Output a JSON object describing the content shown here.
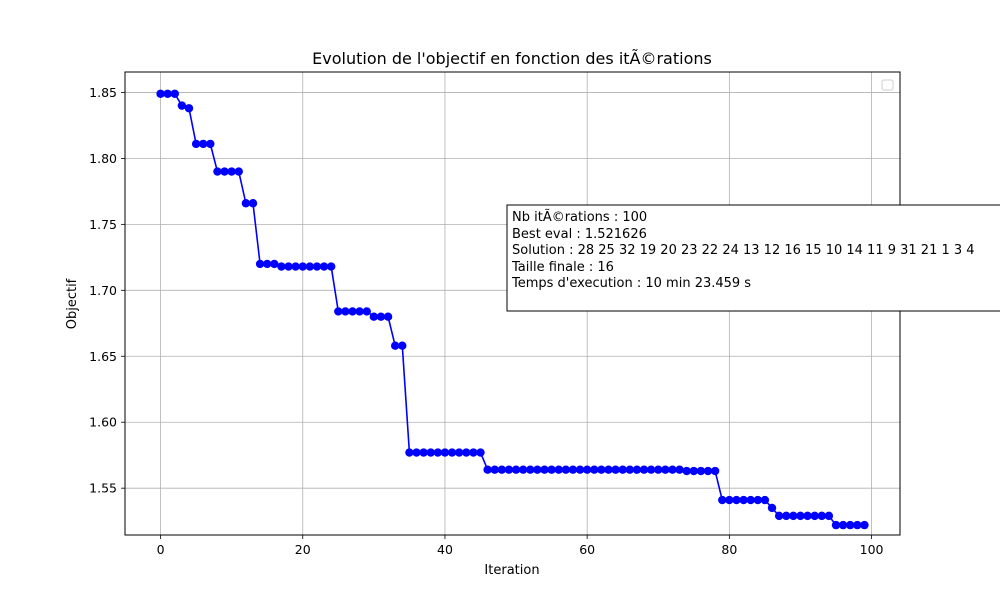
{
  "chart_data": {
    "type": "line",
    "title": "Evolution de l'objectif en fonction des itÃ©rations",
    "xlabel": "Iteration",
    "ylabel": "Objectif",
    "xlim": [
      -5,
      104
    ],
    "ylim": [
      1.5145,
      1.8655
    ],
    "xticks": [
      0,
      20,
      40,
      60,
      80,
      100
    ],
    "yticks": [
      1.55,
      1.6,
      1.65,
      1.7,
      1.75,
      1.8,
      1.85
    ],
    "ytick_labels": [
      "1.55",
      "1.60",
      "1.65",
      "1.70",
      "1.75",
      "1.80",
      "1.85"
    ],
    "grid": true,
    "legend": "top-right (empty)",
    "colors": {
      "line": "#0000ff",
      "marker": "#0000ff",
      "grid": "#b0b0b0",
      "frame": "#000000"
    },
    "series": [
      {
        "x": [
          0,
          1,
          2,
          3,
          4,
          5,
          6,
          7,
          8,
          9,
          10,
          11,
          12,
          13,
          14,
          15,
          16,
          17,
          18,
          19,
          20,
          21,
          22,
          23,
          24,
          25,
          26,
          27,
          28,
          29,
          30,
          31,
          32,
          33,
          34,
          35,
          36,
          37,
          38,
          39,
          40,
          41,
          42,
          43,
          44,
          45,
          46,
          47,
          48,
          49,
          50,
          51,
          52,
          53,
          54,
          55,
          56,
          57,
          58,
          59,
          60,
          61,
          62,
          63,
          64,
          65,
          66,
          67,
          68,
          69,
          70,
          71,
          72,
          73,
          74,
          75,
          76,
          77,
          78,
          79,
          80,
          81,
          82,
          83,
          84,
          85,
          86,
          87,
          88,
          89,
          90,
          91,
          92,
          93,
          94,
          95,
          96,
          97,
          98,
          99
        ],
        "values": [
          1.849,
          1.849,
          1.849,
          1.84,
          1.838,
          1.811,
          1.811,
          1.811,
          1.79,
          1.79,
          1.79,
          1.79,
          1.766,
          1.766,
          1.72,
          1.72,
          1.72,
          1.718,
          1.718,
          1.718,
          1.718,
          1.718,
          1.718,
          1.718,
          1.718,
          1.684,
          1.684,
          1.684,
          1.684,
          1.684,
          1.68,
          1.68,
          1.68,
          1.658,
          1.658,
          1.577,
          1.577,
          1.577,
          1.577,
          1.577,
          1.577,
          1.577,
          1.577,
          1.577,
          1.577,
          1.577,
          1.564,
          1.564,
          1.564,
          1.564,
          1.564,
          1.564,
          1.564,
          1.564,
          1.564,
          1.564,
          1.564,
          1.564,
          1.564,
          1.564,
          1.564,
          1.564,
          1.564,
          1.564,
          1.564,
          1.564,
          1.564,
          1.564,
          1.564,
          1.564,
          1.564,
          1.564,
          1.564,
          1.564,
          1.563,
          1.563,
          1.563,
          1.563,
          1.563,
          1.541,
          1.541,
          1.541,
          1.541,
          1.541,
          1.541,
          1.541,
          1.535,
          1.529,
          1.529,
          1.529,
          1.529,
          1.529,
          1.529,
          1.529,
          1.529,
          1.522,
          1.522,
          1.522,
          1.522,
          1.522
        ]
      }
    ],
    "annotation": {
      "lines": [
        "Nb itÃ©rations : 100",
        "Best eval : 1.521626",
        "Solution : 28 25 32 19 20 23 22 24 13 12 16 15 10 14 11 9 31 21 1 3 4",
        "Taille finale : 16",
        "Temps d'execution : 10 min 23.459 s"
      ]
    }
  }
}
